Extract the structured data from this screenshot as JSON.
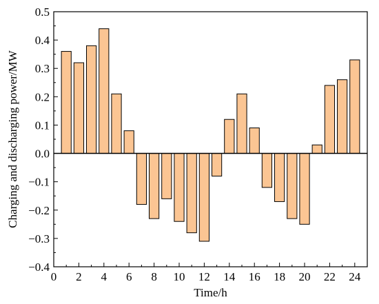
{
  "chart_data": {
    "type": "bar",
    "xlabel": "Time/h",
    "ylabel": "Charging and discharging power/MW",
    "xlim": [
      0,
      25
    ],
    "ylim": [
      -0.4,
      0.5
    ],
    "xticks": [
      0,
      2,
      4,
      6,
      8,
      10,
      12,
      14,
      16,
      18,
      20,
      22,
      24
    ],
    "yticks": [
      -0.4,
      -0.3,
      -0.2,
      -0.1,
      0.0,
      0.1,
      0.2,
      0.3,
      0.4,
      0.5
    ],
    "ytick_labels": [
      "−0.4",
      "−0.3",
      "−0.2",
      "−0.1",
      "0.0",
      "0.1",
      "0.2",
      "0.3",
      "0.4",
      "0.5"
    ],
    "x": [
      1,
      2,
      3,
      4,
      5,
      6,
      7,
      8,
      9,
      10,
      11,
      12,
      13,
      14,
      15,
      16,
      17,
      18,
      19,
      20,
      21,
      22,
      23,
      24
    ],
    "values": [
      0.36,
      0.32,
      0.38,
      0.44,
      0.21,
      0.08,
      -0.18,
      -0.23,
      -0.16,
      -0.24,
      -0.28,
      -0.31,
      -0.08,
      0.12,
      0.21,
      0.09,
      -0.12,
      -0.17,
      -0.23,
      -0.25,
      0.03,
      0.24,
      0.26,
      0.33
    ],
    "bar_color": "#fbc593",
    "edge_color": "#000000",
    "grid": false,
    "legend": false
  }
}
